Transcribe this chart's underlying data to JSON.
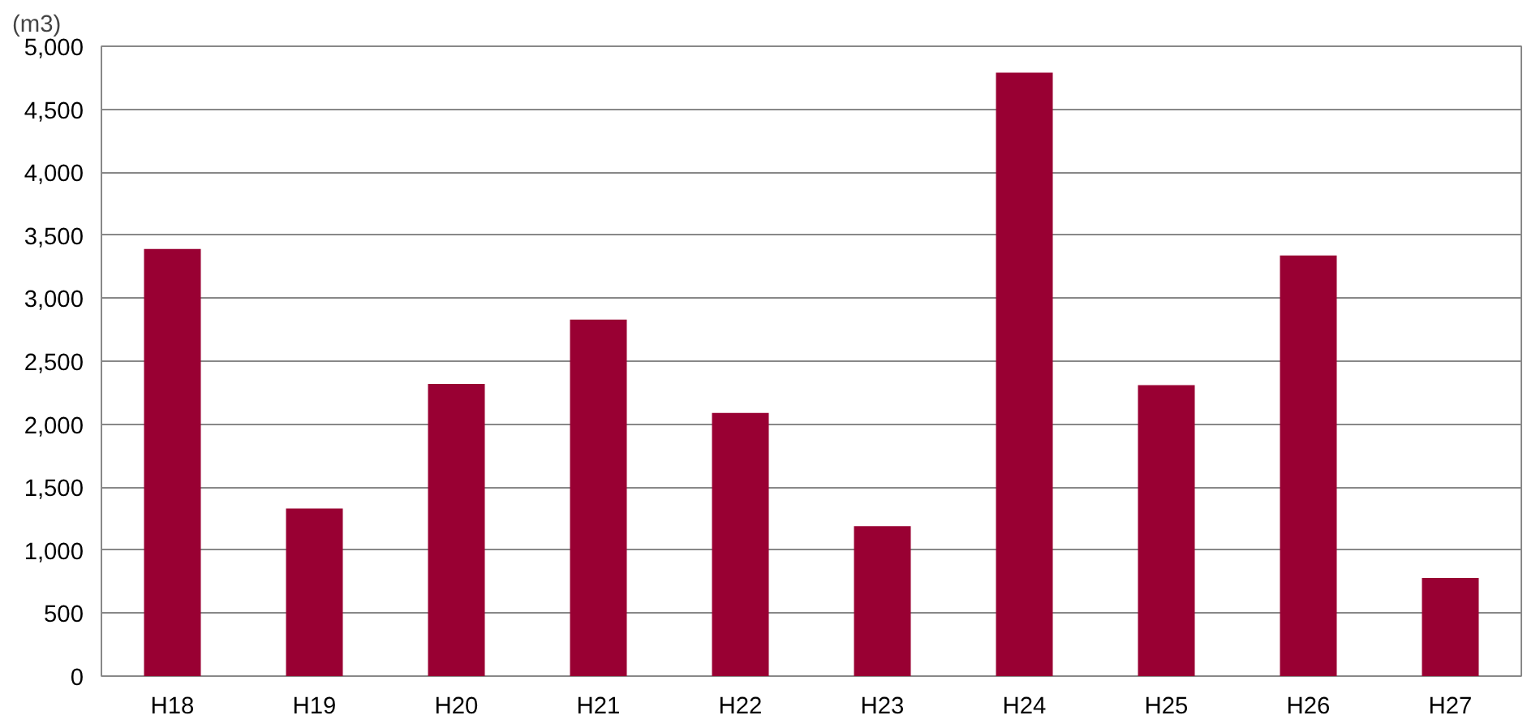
{
  "chart_data": {
    "type": "bar",
    "ylabel": "(m3)",
    "categories": [
      "H18",
      "H19",
      "H20",
      "H21",
      "H22",
      "H23",
      "H24",
      "H25",
      "H26",
      "H27"
    ],
    "values": [
      3390,
      1330,
      2320,
      2830,
      2090,
      1190,
      4790,
      2310,
      3340,
      780
    ],
    "color": "#990033",
    "ylim": [
      0,
      5000
    ],
    "yticks": [
      {
        "value": 0,
        "label": "0"
      },
      {
        "value": 500,
        "label": "500"
      },
      {
        "value": 1000,
        "label": "1,000"
      },
      {
        "value": 1500,
        "label": "1,500"
      },
      {
        "value": 2000,
        "label": "2,000"
      },
      {
        "value": 2500,
        "label": "2,500"
      },
      {
        "value": 3000,
        "label": "3,000"
      },
      {
        "value": 3500,
        "label": "3,500"
      },
      {
        "value": 4000,
        "label": "4,000"
      },
      {
        "value": 4500,
        "label": "4,500"
      },
      {
        "value": 5000,
        "label": "5,000"
      }
    ],
    "grid": "y"
  }
}
